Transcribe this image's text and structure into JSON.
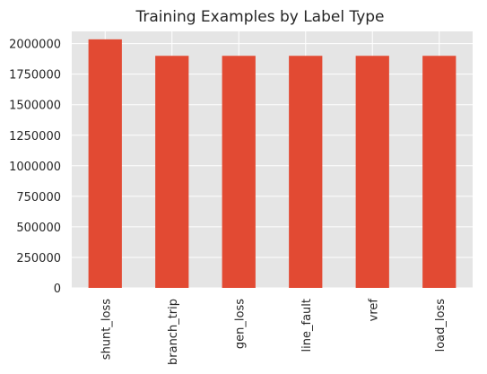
{
  "chart_data": {
    "type": "bar",
    "title": "Training Examples by Label Type",
    "xlabel": "",
    "ylabel": "",
    "categories": [
      "shunt_loss",
      "branch_trip",
      "gen_loss",
      "line_fault",
      "vref",
      "load_loss"
    ],
    "values": [
      2035000,
      1900000,
      1900000,
      1900000,
      1900000,
      1900000
    ],
    "ylim": [
      0,
      2100000
    ],
    "yticks": [
      0,
      250000,
      500000,
      750000,
      1000000,
      1250000,
      1500000,
      1750000,
      2000000
    ],
    "grid": true,
    "legend": "none",
    "colors": {
      "bar": "#e24a33",
      "background": "#e5e5e5",
      "grid": "#ffffff"
    }
  }
}
